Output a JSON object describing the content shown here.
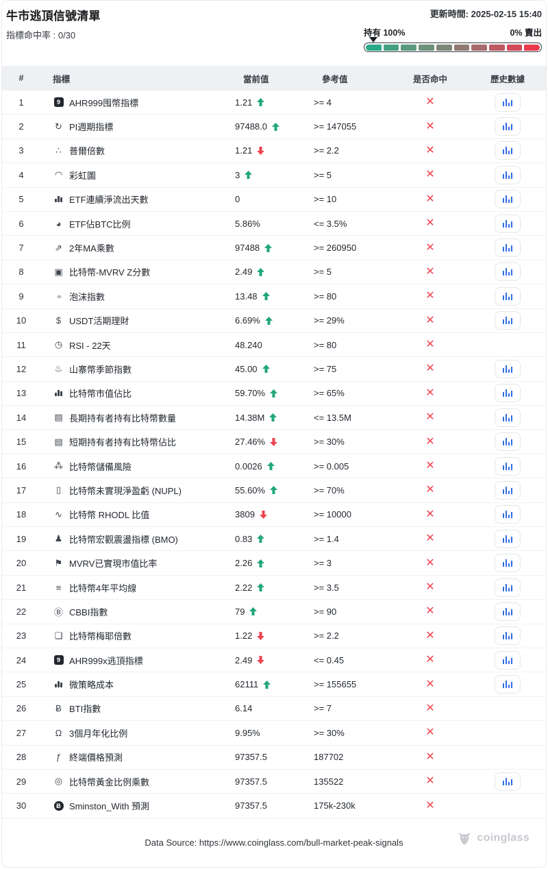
{
  "header": {
    "title": "牛市逃頂信號清單",
    "updated": "更新時間: 2025-02-15 15:40",
    "hit_rate": "指標命中率 : 0/30",
    "gauge": {
      "left_label": "持有 100%",
      "right_label": "0% 賣出",
      "segments": [
        "#2aa98a",
        "#46a183",
        "#5b9a7f",
        "#6e917a",
        "#7e8677",
        "#927971",
        "#a76b6b",
        "#bd5a62",
        "#d34a59",
        "#ea3a4e"
      ]
    }
  },
  "table": {
    "columns": [
      "#",
      "指標",
      "當前值",
      "參考值",
      "是否命中",
      "歷史數據"
    ],
    "miss_symbol": "✕",
    "rows": [
      {
        "num": "1",
        "icon": "nine-badge",
        "name": "AHR999囤幣指標",
        "value": "1.21",
        "trend": "up",
        "ref": ">= 4",
        "hit": "miss",
        "history": true
      },
      {
        "num": "2",
        "icon": "cycle",
        "name": "PI週期指標",
        "value": "97488.0",
        "trend": "up",
        "ref": ">= 147055",
        "hit": "miss",
        "history": true
      },
      {
        "num": "3",
        "icon": "dots",
        "name": "普爾倍數",
        "value": "1.21",
        "trend": "down",
        "ref": ">= 2.2",
        "hit": "miss",
        "history": true
      },
      {
        "num": "4",
        "icon": "rainbow",
        "name": "彩虹圖",
        "value": "3",
        "trend": "up",
        "ref": ">= 5",
        "hit": "miss",
        "history": true
      },
      {
        "num": "5",
        "icon": "bar-chart",
        "name": "ETF連續淨流出天數",
        "value": "0",
        "trend": "none",
        "ref": ">= 10",
        "hit": "miss",
        "history": true
      },
      {
        "num": "6",
        "icon": "pie-chart",
        "name": "ETF佔BTC比例",
        "value": "5.86%",
        "trend": "none",
        "ref": "<= 3.5%",
        "hit": "miss",
        "history": true
      },
      {
        "num": "7",
        "icon": "line-chart",
        "name": "2年MA乘數",
        "value": "97488",
        "trend": "up",
        "ref": ">= 260950",
        "hit": "miss",
        "history": true
      },
      {
        "num": "8",
        "icon": "clipboard",
        "name": "比特幣-MVRV Z分數",
        "value": "2.49",
        "trend": "up",
        "ref": ">= 5",
        "hit": "miss",
        "history": true
      },
      {
        "num": "9",
        "icon": "bubbles",
        "name": "泡沫指數",
        "value": "13.48",
        "trend": "up",
        "ref": ">= 80",
        "hit": "miss",
        "history": true
      },
      {
        "num": "10",
        "icon": "dollar",
        "name": "USDT活期理財",
        "value": "6.69%",
        "trend": "up",
        "ref": ">= 29%",
        "hit": "miss",
        "history": true
      },
      {
        "num": "11",
        "icon": "clock",
        "name": "RSI - 22天",
        "value": "48.240",
        "trend": "none",
        "ref": ">= 80",
        "hit": "miss",
        "history": false
      },
      {
        "num": "12",
        "icon": "flame",
        "name": "山寨幣季節指數",
        "value": "45.00",
        "trend": "up",
        "ref": ">= 75",
        "hit": "miss",
        "history": true
      },
      {
        "num": "13",
        "icon": "signal-bars",
        "name": "比特幣市值佔比",
        "value": "59.70%",
        "trend": "up",
        "ref": ">= 65%",
        "hit": "miss",
        "history": true
      },
      {
        "num": "14",
        "icon": "database",
        "name": "長期持有者持有比特幣數量",
        "value": "14.38M",
        "trend": "up",
        "ref": "<= 13.5M",
        "hit": "miss",
        "history": true
      },
      {
        "num": "15",
        "icon": "database",
        "name": "短期持有者持有比特幣佔比",
        "value": "27.46%",
        "trend": "down",
        "ref": ">= 30%",
        "hit": "miss",
        "history": true
      },
      {
        "num": "16",
        "icon": "cluster",
        "name": "比特幣儲備風險",
        "value": "0.0026",
        "trend": "up",
        "ref": ">= 0.005",
        "hit": "miss",
        "history": true
      },
      {
        "num": "17",
        "icon": "battery",
        "name": "比特幣未實現淨盈虧 (NUPL)",
        "value": "55.60%",
        "trend": "up",
        "ref": ">= 70%",
        "hit": "miss",
        "history": true
      },
      {
        "num": "18",
        "icon": "pulse",
        "name": "比特幣 RHODL 比值",
        "value": "3809",
        "trend": "down",
        "ref": ">= 10000",
        "hit": "miss",
        "history": true
      },
      {
        "num": "19",
        "icon": "statue",
        "name": "比特幣宏觀震盪指標 (BMO)",
        "value": "0.83",
        "trend": "up",
        "ref": ">= 1.4",
        "hit": "miss",
        "history": true
      },
      {
        "num": "20",
        "icon": "flag",
        "name": "MVRV已實現市值比率",
        "value": "2.26",
        "trend": "up",
        "ref": ">= 3",
        "hit": "miss",
        "history": true
      },
      {
        "num": "21",
        "icon": "lines",
        "name": "比特幣4年平均線",
        "value": "2.22",
        "trend": "up",
        "ref": ">= 3.5",
        "hit": "miss",
        "history": true
      },
      {
        "num": "22",
        "icon": "circled-b",
        "name": "CBBI指數",
        "value": "79",
        "trend": "up",
        "ref": ">= 90",
        "hit": "miss",
        "history": true
      },
      {
        "num": "23",
        "icon": "copy",
        "name": "比特幣梅耶倍數",
        "value": "1.22",
        "trend": "down",
        "ref": ">= 2.2",
        "hit": "miss",
        "history": true
      },
      {
        "num": "24",
        "icon": "nine-badge",
        "name": "AHR999x逃頂指標",
        "value": "2.49",
        "trend": "down",
        "ref": "<= 0.45",
        "hit": "miss",
        "history": true
      },
      {
        "num": "25",
        "icon": "bar-chart",
        "name": "微策略成本",
        "value": "62111",
        "trend": "up",
        "ref": ">= 155655",
        "hit": "miss",
        "history": true
      },
      {
        "num": "26",
        "icon": "btc",
        "name": "BTI指數",
        "value": "6.14",
        "trend": "none",
        "ref": ">= 7",
        "hit": "miss",
        "history": false
      },
      {
        "num": "27",
        "icon": "scale",
        "name": "3個月年化比例",
        "value": "9.95%",
        "trend": "none",
        "ref": ">= 30%",
        "hit": "miss",
        "history": false
      },
      {
        "num": "28",
        "icon": "hook",
        "name": "終端價格預測",
        "value": "97357.5",
        "trend": "none",
        "ref": "187702",
        "hit": "miss",
        "history": false
      },
      {
        "num": "29",
        "icon": "check-circle",
        "name": "比特幣黃金比例乘數",
        "value": "97357.5",
        "trend": "none",
        "ref": "135522",
        "hit": "miss",
        "history": true
      },
      {
        "num": "30",
        "icon": "btc-badge",
        "name": "Sminston_With 預測",
        "value": "97357.5",
        "trend": "none",
        "ref": "175k-230k",
        "hit": "miss",
        "history": false
      }
    ]
  },
  "footer": {
    "source": "Data Source: https://www.coinglass.com/bull-market-peak-signals",
    "brand": "coinglass"
  },
  "colors": {
    "up": "#21a67c",
    "down": "#ee4450",
    "miss": "#ee4450",
    "history_blue": "#2e6be6"
  }
}
